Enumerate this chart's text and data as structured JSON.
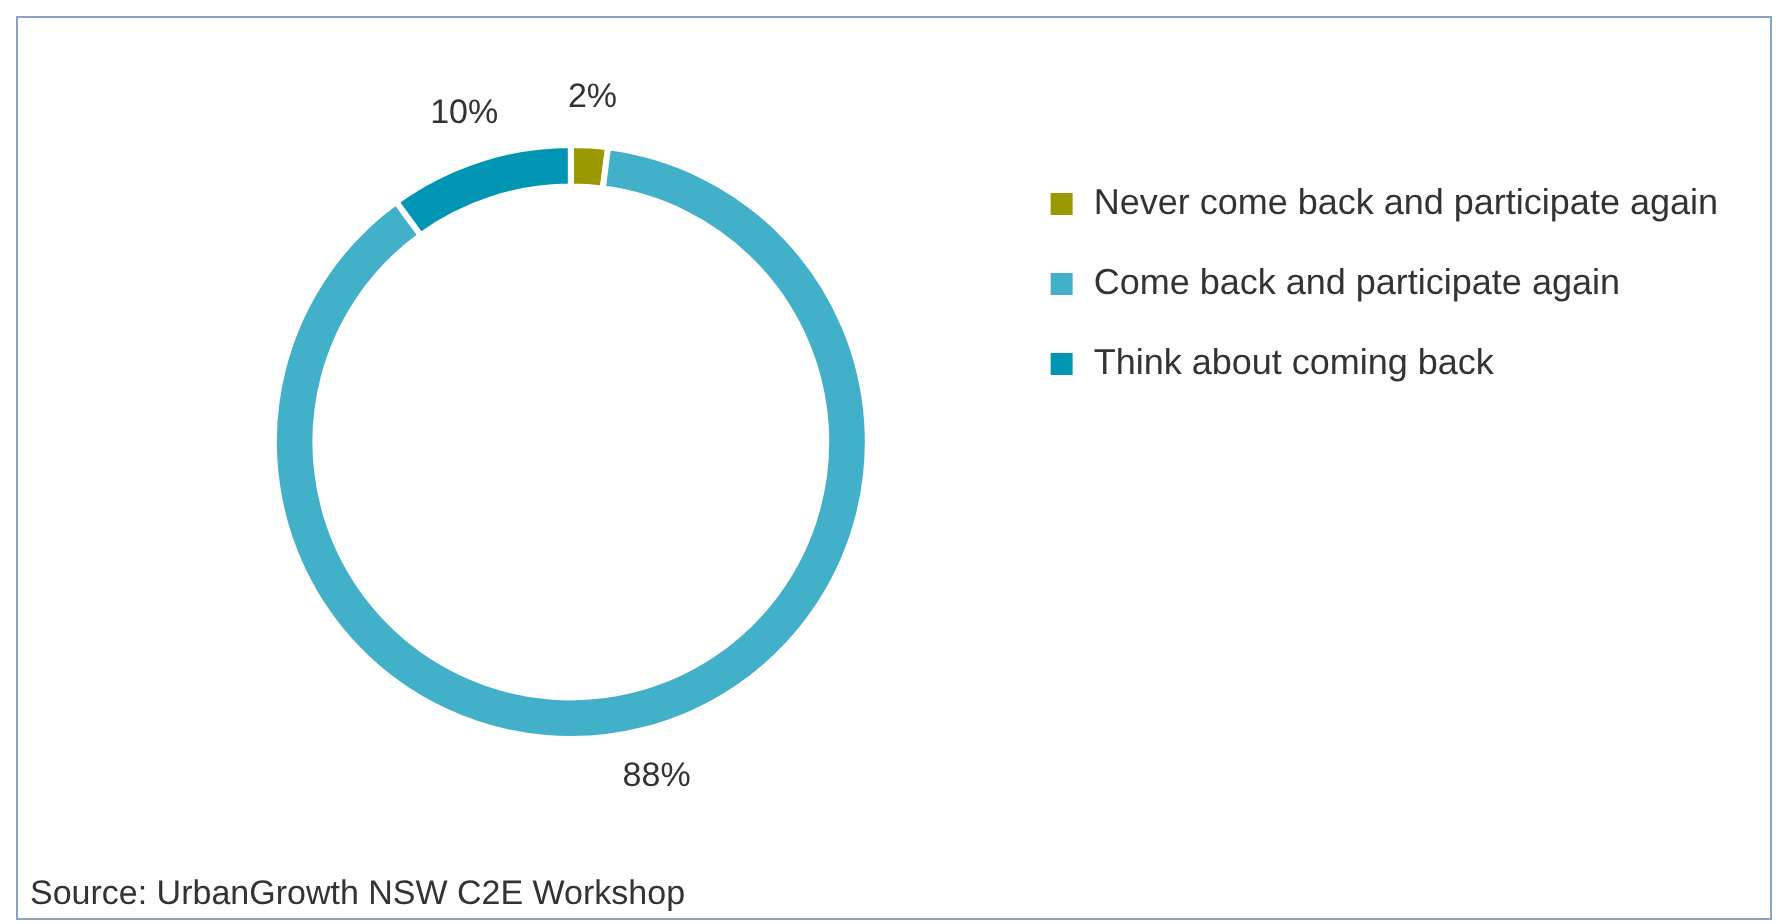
{
  "chart_data": {
    "type": "donut",
    "categories": [
      "Never come back and participate again",
      "Come back and participate again",
      "Think about coming back"
    ],
    "values": [
      2,
      88,
      10
    ],
    "colors": [
      "#9a9a00",
      "#42b0c8",
      "#0095b3"
    ],
    "value_labels": [
      "2%",
      "88%",
      "10%"
    ],
    "legend": "right",
    "annotations": [
      "Source: UrbanGrowth NSW C2E Workshop"
    ]
  }
}
